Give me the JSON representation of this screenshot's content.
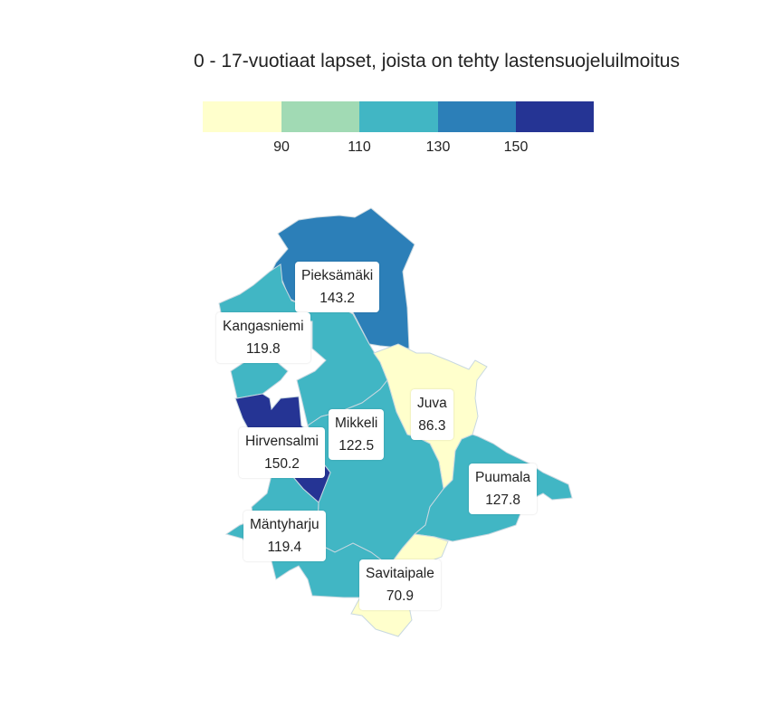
{
  "title": "0 - 17-vuotiaat lapset, joista on tehty lastensuojeluilmoitus",
  "legend": {
    "colors": [
      "#ffffcc",
      "#a1dab4",
      "#41b6c4",
      "#2c7fb8",
      "#253494"
    ],
    "ticks": [
      "90",
      "110",
      "130",
      "150"
    ]
  },
  "regions": [
    {
      "name": "Pieksämäki",
      "value": "143.2",
      "color": "#2c7fb8"
    },
    {
      "name": "Kangasniemi",
      "value": "119.8",
      "color": "#41b6c4"
    },
    {
      "name": "Juva",
      "value": "86.3",
      "color": "#ffffcc"
    },
    {
      "name": "Mikkeli",
      "value": "122.5",
      "color": "#41b6c4"
    },
    {
      "name": "Hirvensalmi",
      "value": "150.2",
      "color": "#253494"
    },
    {
      "name": "Puumala",
      "value": "127.8",
      "color": "#41b6c4"
    },
    {
      "name": "Mäntyharju",
      "value": "119.4",
      "color": "#41b6c4"
    },
    {
      "name": "Savitaipale",
      "value": "70.9",
      "color": "#ffffcc"
    }
  ]
}
